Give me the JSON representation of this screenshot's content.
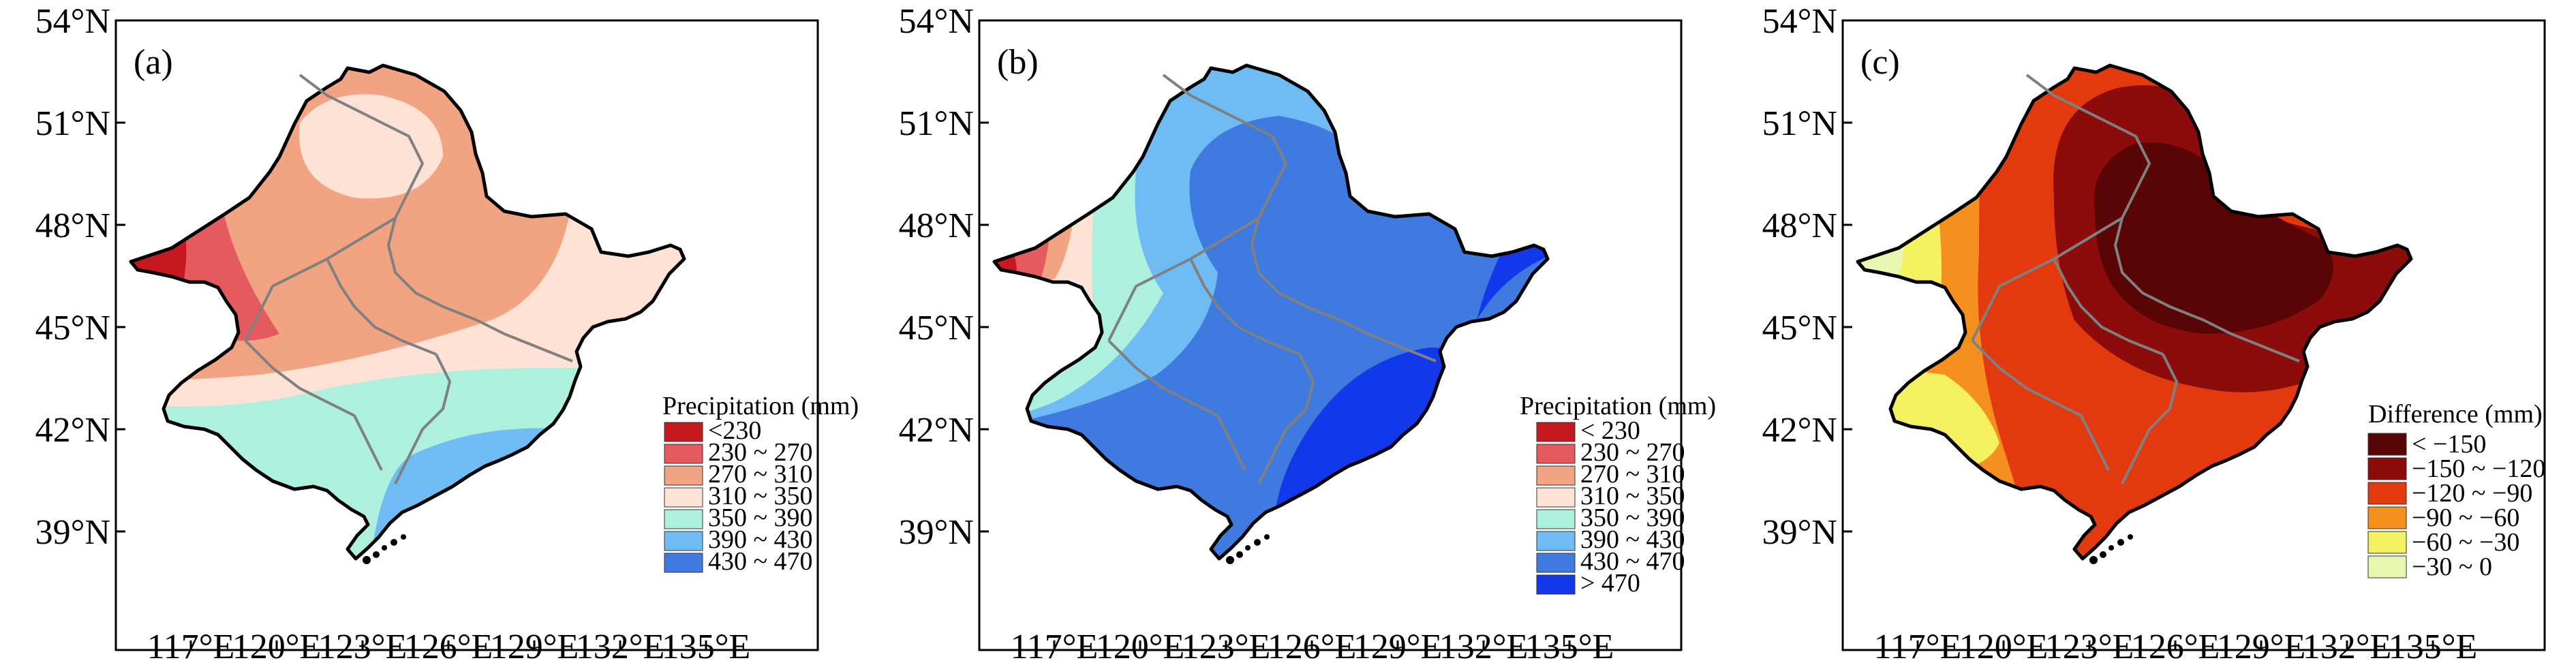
{
  "figure": {
    "latitude_labels": [
      "54°N",
      "51°N",
      "48°N",
      "45°N",
      "42°N",
      "39°N"
    ],
    "longitude_labels": [
      "117°E",
      "120°E",
      "123°E",
      "126°E",
      "129°E",
      "132°E",
      "135°E"
    ]
  },
  "panels": [
    {
      "label": "(a)",
      "legend_title": "Precipitation (mm)",
      "legend": [
        {
          "text": "<230",
          "color": "#c8181f"
        },
        {
          "text": "230 ~ 270",
          "color": "#e45a5e"
        },
        {
          "text": "270 ~ 310",
          "color": "#f2a382"
        },
        {
          "text": "310 ~ 350",
          "color": "#fde2d5"
        },
        {
          "text": "350 ~ 390",
          "color": "#aef0de"
        },
        {
          "text": "390 ~ 430",
          "color": "#6fbcf5"
        },
        {
          "text": "430 ~ 470",
          "color": "#3e7ae0"
        }
      ]
    },
    {
      "label": "(b)",
      "legend_title": "Precipitation (mm)",
      "legend": [
        {
          "text": "< 230",
          "color": "#c8181f"
        },
        {
          "text": "230 ~ 270",
          "color": "#e45a5e"
        },
        {
          "text": "270 ~ 310",
          "color": "#f2a382"
        },
        {
          "text": "310 ~ 350",
          "color": "#fde2d5"
        },
        {
          "text": "350 ~ 390",
          "color": "#aef0de"
        },
        {
          "text": "390 ~ 430",
          "color": "#6fbcf5"
        },
        {
          "text": "430 ~ 470",
          "color": "#3e7ae0"
        },
        {
          "text": "> 470",
          "color": "#1238ea"
        }
      ]
    },
    {
      "label": "(c)",
      "legend_title": "Difference (mm)",
      "legend": [
        {
          "text": "< −150",
          "color": "#5a0505"
        },
        {
          "text": "−150 ~ −120",
          "color": "#8c0c0c"
        },
        {
          "text": "−120 ~ −90",
          "color": "#e23a0e"
        },
        {
          "text": "−90 ~ −60",
          "color": "#f58f1e"
        },
        {
          "text": "−60 ~ −30",
          "color": "#f5f060"
        },
        {
          "text": "−30 ~ 0",
          "color": "#e8f7b0"
        }
      ]
    }
  ]
}
